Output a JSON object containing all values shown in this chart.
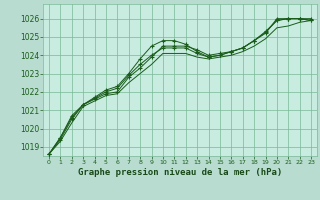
{
  "background_color": "#b8ddd0",
  "plot_bg_color": "#c8ece0",
  "grid_color": "#7ab898",
  "line_color": "#1a5c1a",
  "title": "Graphe pression niveau de la mer (hPa)",
  "title_color": "#1a4a1a",
  "ylim": [
    1018.5,
    1026.8
  ],
  "xlim": [
    -0.5,
    23.5
  ],
  "yticks": [
    1019,
    1020,
    1021,
    1022,
    1023,
    1024,
    1025,
    1026
  ],
  "xticks": [
    0,
    1,
    2,
    3,
    4,
    5,
    6,
    7,
    8,
    9,
    10,
    11,
    12,
    13,
    14,
    15,
    16,
    17,
    18,
    19,
    20,
    21,
    22,
    23
  ],
  "series1": {
    "x": [
      0,
      1,
      2,
      3,
      4,
      5,
      6,
      7,
      8,
      9,
      10,
      11,
      12,
      13,
      14,
      15,
      16,
      17,
      18,
      19,
      20,
      21,
      22,
      23
    ],
    "y": [
      1018.6,
      1019.4,
      1020.5,
      1021.3,
      1021.6,
      1021.9,
      1022.0,
      1022.8,
      1023.3,
      1023.9,
      1024.5,
      1024.5,
      1024.5,
      1024.3,
      1024.0,
      1024.1,
      1024.2,
      1024.4,
      1024.8,
      1025.2,
      1026.0,
      1026.0,
      1026.0,
      1025.9
    ],
    "marker": true
  },
  "series2": {
    "x": [
      0,
      1,
      2,
      3,
      4,
      5,
      6,
      7,
      8,
      9,
      10,
      11,
      12,
      13,
      14,
      15,
      16,
      17,
      18,
      19,
      20,
      21,
      22,
      23
    ],
    "y": [
      1018.6,
      1019.3,
      1020.3,
      1021.2,
      1021.5,
      1021.8,
      1021.9,
      1022.5,
      1023.0,
      1023.5,
      1024.1,
      1024.1,
      1024.1,
      1023.9,
      1023.8,
      1023.9,
      1024.0,
      1024.2,
      1024.5,
      1024.9,
      1025.5,
      1025.6,
      1025.8,
      1025.9
    ],
    "marker": false
  },
  "series3": {
    "x": [
      0,
      1,
      2,
      3,
      4,
      5,
      6,
      7,
      8,
      9,
      10,
      11,
      12,
      13,
      14,
      15,
      16,
      17,
      18,
      19,
      20,
      21,
      22,
      23
    ],
    "y": [
      1018.6,
      1019.5,
      1020.6,
      1021.3,
      1021.7,
      1022.1,
      1022.3,
      1023.0,
      1023.8,
      1024.5,
      1024.8,
      1024.8,
      1024.6,
      1024.2,
      1023.9,
      1024.0,
      1024.2,
      1024.4,
      1024.8,
      1025.3,
      1025.9,
      1026.0,
      1026.0,
      1026.0
    ],
    "marker": true
  },
  "series4": {
    "x": [
      0,
      1,
      2,
      3,
      4,
      5,
      6,
      7,
      8,
      9,
      10,
      11,
      12,
      13,
      14,
      15,
      16,
      17,
      18,
      19,
      20,
      21,
      22,
      23
    ],
    "y": [
      1018.6,
      1019.5,
      1020.7,
      1021.3,
      1021.65,
      1022.0,
      1022.2,
      1022.9,
      1023.5,
      1024.0,
      1024.4,
      1024.4,
      1024.4,
      1024.1,
      1023.9,
      1024.0,
      1024.2,
      1024.4,
      1024.8,
      1025.25,
      1025.9,
      1026.0,
      1026.0,
      1025.9
    ],
    "marker": true
  }
}
